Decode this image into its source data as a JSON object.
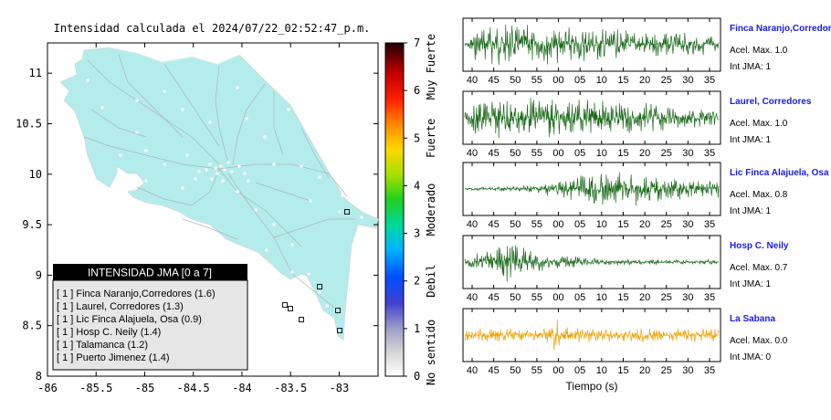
{
  "map": {
    "title": "Intensidad calculada el 2024/07/22_02:52:47_p.m.",
    "x_ticks": [
      "-86",
      "-85.5",
      "-85",
      "-84.5",
      "-84",
      "-83.5",
      "-83"
    ],
    "x_values": [
      -86,
      -85.5,
      -85,
      -84.5,
      -84,
      -83.5,
      -83
    ],
    "y_ticks": [
      "11",
      "10.5",
      "10",
      "9.5",
      "9",
      "8.5",
      "8"
    ],
    "y_values": [
      11,
      10.5,
      10,
      9.5,
      9,
      8.5,
      8
    ],
    "xlim": [
      -86,
      -82.6
    ],
    "ylim": [
      8,
      11.3
    ],
    "land_color": "#b4ecec",
    "legend": {
      "title": "INTENSIDAD JMA [0 a 7]",
      "items": [
        "[ 1 ]  Finca Naranjo,Corredores (1.6)",
        "[ 1 ]  Laurel, Corredores (1.3)",
        "[ 1 ]  Lic Finca Alajuela, Osa (0.9)",
        "[ 1 ]  Hosp C. Neily (1.4)",
        "[ 1 ]  Talamanca (1.2)",
        "[ 1 ]  Puerto Jimenez (1.4)"
      ]
    }
  },
  "colorbar": {
    "ticks": [
      "7",
      "6",
      "5",
      "4",
      "3",
      "2",
      "1",
      "0"
    ],
    "values": [
      7,
      6,
      5,
      4,
      3,
      2,
      1,
      0
    ],
    "labels": [
      "Muy Fuerte",
      "Fuerte",
      "Moderado",
      "Debil",
      "No sentido"
    ],
    "label_ranges": [
      [
        6,
        7
      ],
      [
        4.5,
        5.5
      ],
      [
        3,
        4
      ],
      [
        1.5,
        2.5
      ],
      [
        0,
        1
      ]
    ]
  },
  "chart_data": [
    {
      "type": "line",
      "name": "Finca Naranjo,Corredores",
      "accel_label": "Acel. Max. 1.0",
      "jma_label": "Int JMA: 1",
      "color": "#1a6a1a",
      "x_ticks": [
        "40",
        "45",
        "50",
        "55",
        "00",
        "05",
        "10",
        "15",
        "20",
        "25",
        "30",
        "35"
      ],
      "envelope": [
        [
          0,
          0.2
        ],
        [
          0.05,
          0.8
        ],
        [
          0.15,
          0.95
        ],
        [
          0.4,
          0.85
        ],
        [
          0.7,
          0.6
        ],
        [
          0.9,
          0.5
        ],
        [
          1,
          0.4
        ]
      ]
    },
    {
      "type": "line",
      "name": "Laurel, Corredores",
      "accel_label": "Acel. Max. 1.0",
      "jma_label": "Int JMA: 1",
      "color": "#1a6a1a",
      "x_ticks": [
        "40",
        "45",
        "50",
        "55",
        "00",
        "05",
        "10",
        "15",
        "20",
        "25",
        "30",
        "35"
      ],
      "envelope": [
        [
          0,
          0.25
        ],
        [
          0.05,
          0.8
        ],
        [
          0.15,
          0.95
        ],
        [
          0.4,
          0.85
        ],
        [
          0.7,
          0.65
        ],
        [
          0.9,
          0.45
        ],
        [
          1,
          0.4
        ]
      ]
    },
    {
      "type": "line",
      "name": "Lic Finca Alajuela, Osa",
      "accel_label": "Acel. Max. 0.8",
      "jma_label": "Int JMA: 1",
      "color": "#1a6a1a",
      "x_ticks": [
        "40",
        "45",
        "50",
        "55",
        "00",
        "05",
        "10",
        "15",
        "20",
        "25",
        "30",
        "35"
      ],
      "envelope": [
        [
          0,
          0.05
        ],
        [
          0.15,
          0.1
        ],
        [
          0.3,
          0.25
        ],
        [
          0.45,
          0.55
        ],
        [
          0.5,
          0.95
        ],
        [
          0.6,
          0.8
        ],
        [
          0.8,
          0.55
        ],
        [
          1,
          0.4
        ]
      ]
    },
    {
      "type": "line",
      "name": "Hosp C. Neily",
      "accel_label": "Acel. Max. 0.7",
      "jma_label": "Int JMA: 1",
      "color": "#1a6a1a",
      "x_ticks": [
        "40",
        "45",
        "50",
        "55",
        "00",
        "05",
        "10",
        "15",
        "20",
        "25",
        "30",
        "35"
      ],
      "envelope": [
        [
          0,
          0.35
        ],
        [
          0.1,
          0.5
        ],
        [
          0.17,
          0.95
        ],
        [
          0.25,
          0.55
        ],
        [
          0.35,
          0.3
        ],
        [
          0.6,
          0.15
        ],
        [
          1,
          0.1
        ]
      ]
    },
    {
      "type": "line",
      "name": "La Sabana",
      "accel_label": "Acel. Max. 0.0",
      "jma_label": "Int JMA: 0",
      "color": "#f0a000",
      "x_ticks": [
        "40",
        "45",
        "50",
        "55",
        "00",
        "05",
        "10",
        "15",
        "20",
        "25",
        "30",
        "35"
      ],
      "envelope": [
        [
          0,
          0.3
        ],
        [
          0.25,
          0.3
        ],
        [
          0.33,
          0.35
        ],
        [
          0.35,
          0.95
        ],
        [
          0.38,
          0.4
        ],
        [
          0.6,
          0.35
        ],
        [
          1,
          0.3
        ]
      ]
    }
  ],
  "time_axis_label": "Tiempo (s)"
}
